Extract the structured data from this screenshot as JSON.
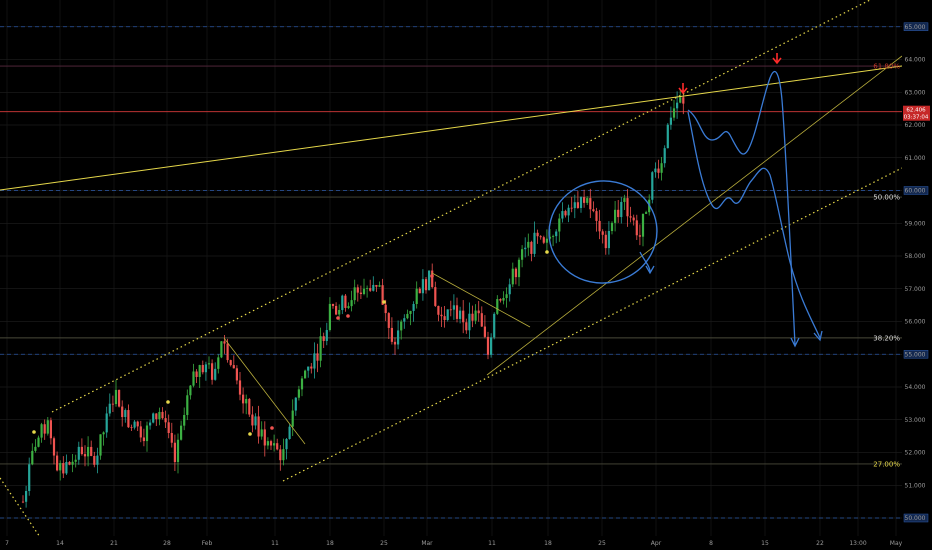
{
  "chart_data": {
    "type": "candlestick",
    "title": "",
    "xlabel": "",
    "ylabel": "",
    "ylim": [
      49.6,
      65.8
    ],
    "grid": true,
    "x_ticks": [
      "7",
      "14",
      "21",
      "28",
      "Feb",
      "11",
      "18",
      "25",
      "Mar",
      "11",
      "18",
      "25",
      "Apr",
      "8",
      "15",
      "22",
      "13:00",
      "May"
    ],
    "y_ticks": [
      "50.000",
      "51.000",
      "52.000",
      "53.000",
      "54.000",
      "55.000",
      "56.000",
      "57.000",
      "58.000",
      "59.000",
      "60.000",
      "61.000",
      "62.000",
      "63.000",
      "64.000",
      "65.000"
    ],
    "last_price": "62.406",
    "countdown": "03:37:04",
    "fib_levels": [
      {
        "label": "61.80%",
        "value": 63.8
      },
      {
        "label": "50.00%",
        "value": 59.8
      },
      {
        "label": "38.20%",
        "value": 55.5
      },
      {
        "label": "27.00%",
        "value": 51.65
      }
    ],
    "colors": {
      "up": "#26a69a",
      "up_alt": "#3cb043",
      "down": "#ef5350",
      "trendline": "#e6d84a",
      "projection": "#3a7bd5",
      "resistance": "#d83a3a",
      "grid": "#262626",
      "dashed_level": "#2d5aa8",
      "arrow": "#ff2a2a"
    }
  }
}
